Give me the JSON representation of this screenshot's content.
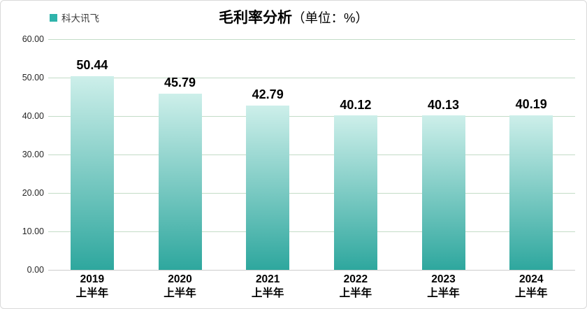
{
  "legend": {
    "label": "科大讯飞",
    "swatch_color": "#2fb3ab"
  },
  "title": {
    "main": "毛利率分析",
    "unit": "（单位：%）"
  },
  "chart_data": {
    "type": "bar",
    "title": "毛利率分析（单位：%）",
    "xlabel": "",
    "ylabel": "",
    "legend_position": "top-left",
    "grid": true,
    "ylim": [
      0,
      60
    ],
    "categories": [
      {
        "line1": "2019",
        "line2": "上半年"
      },
      {
        "line1": "2020",
        "line2": "上半年"
      },
      {
        "line1": "2021",
        "line2": "上半年"
      },
      {
        "line1": "2022",
        "line2": "上半年"
      },
      {
        "line1": "2023",
        "line2": "上半年"
      },
      {
        "line1": "2024",
        "line2": "上半年"
      }
    ],
    "series": [
      {
        "name": "科大讯飞",
        "values": [
          50.44,
          45.79,
          42.79,
          40.12,
          40.13,
          40.19
        ],
        "value_labels": [
          "50.44",
          "45.79",
          "42.79",
          "40.12",
          "40.13",
          "40.19"
        ]
      }
    ],
    "yticks": [
      {
        "value": 0,
        "label": "0.00"
      },
      {
        "value": 10,
        "label": "10.00"
      },
      {
        "value": 20,
        "label": "20.00"
      },
      {
        "value": 30,
        "label": "30.00"
      },
      {
        "value": 40,
        "label": "40.00"
      },
      {
        "value": 50,
        "label": "50.00"
      },
      {
        "value": 60,
        "label": "60.00"
      }
    ],
    "colors": {
      "bar_gradient_top": "#cdefea",
      "bar_gradient_bottom": "#2ea79e",
      "gridline": "#c3dcc7",
      "baseline": "#cccccc",
      "value_label": "#000000",
      "tick_label": "#262626"
    }
  }
}
